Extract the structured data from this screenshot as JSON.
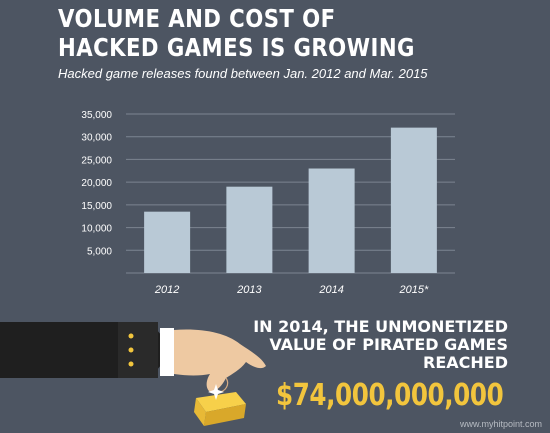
{
  "title_line1": "VOLUME AND COST OF",
  "title_line2": "HACKED GAMES IS GROWING",
  "subtitle": "Hacked game releases found between Jan. 2012 and Mar. 2015",
  "chart_data": {
    "type": "bar",
    "categories": [
      "2012",
      "2013",
      "2014",
      "2015*"
    ],
    "values": [
      13500,
      19000,
      23000,
      32000
    ],
    "xlabel": "",
    "ylabel": "",
    "ylim": [
      0,
      35000
    ],
    "yticks": [
      "5,000",
      "10,000",
      "15,000",
      "20,000",
      "25,000",
      "30,000",
      "35,000"
    ],
    "grid": true,
    "bar_color": "#b9c9d6",
    "grid_color": "#7d8591"
  },
  "callout": {
    "line1": "IN 2014, THE UNMONETIZED",
    "line2": "VALUE OF PIRATED GAMES",
    "line3": "REACHED",
    "amount": "$74,000,000,000"
  },
  "watermark": "www.myhitpoint.com",
  "colors": {
    "background": "#4d5562",
    "accent": "#f2c53d",
    "sleeve": "#1f1f1f",
    "skin": "#eec9a2"
  },
  "icons": [
    "hand-icon",
    "gold-bar-icon"
  ]
}
